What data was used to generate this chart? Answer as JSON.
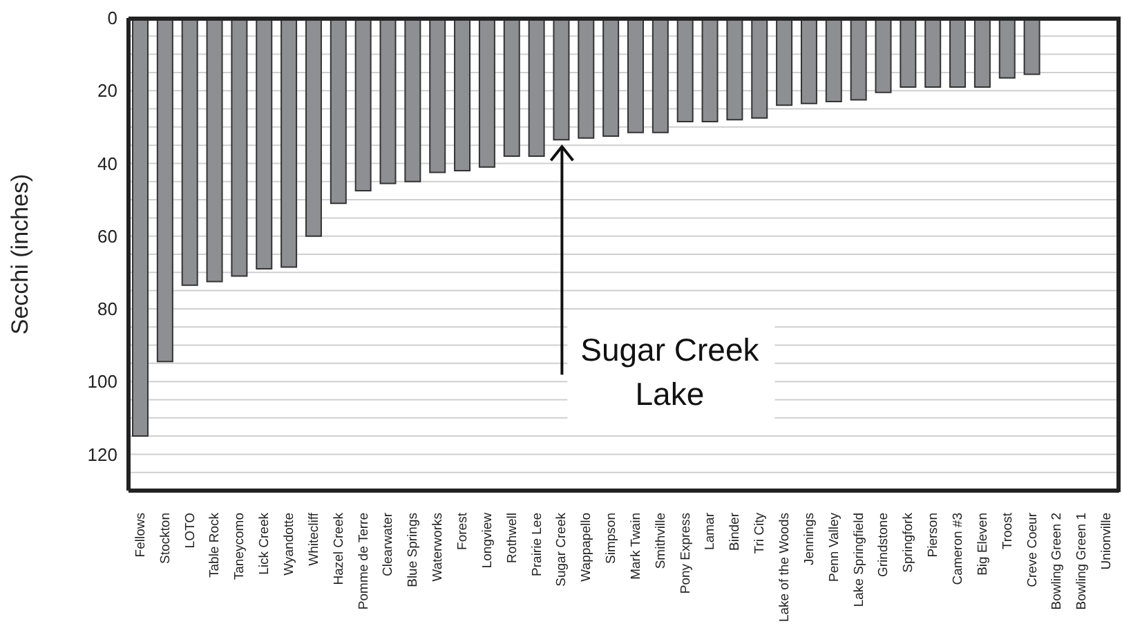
{
  "chart_data": {
    "type": "bar",
    "ylabel": "Secchi (inches)",
    "categories": [
      "Fellows",
      "Stockton",
      "LOTO",
      "Table Rock",
      "Taneycomo",
      "Lick Creek",
      "Wyandotte",
      "Whitecliff",
      "Hazel Creek",
      "Pomme de Terre",
      "Clearwater",
      "Blue Springs",
      "Waterworks",
      "Forest",
      "Longview",
      "Rothwell",
      "Prairie Lee",
      "Sugar Creek",
      "Wappapello",
      "Simpson",
      "Mark Twain",
      "Smithville",
      "Pony Express",
      "Lamar",
      "Binder",
      "Tri City",
      "Lake of the Woods",
      "Jennings",
      "Penn Valley",
      "Lake Springfield",
      "Grindstone",
      "Springfork",
      "Pierson",
      "Cameron #3",
      "Big Eleven",
      "Troost",
      "Creve Coeur",
      "Bowling Green 2",
      "Bowling Green 1",
      "Unionville"
    ],
    "values": [
      115,
      94.5,
      73.5,
      72.5,
      71,
      69,
      68.5,
      60,
      51,
      47.5,
      45.5,
      45,
      42.5,
      42,
      41,
      38,
      38,
      33.5,
      33,
      32.5,
      31.5,
      31.5,
      28.5,
      28.5,
      28,
      27.5,
      24,
      23.5,
      23,
      22.5,
      20.5,
      19,
      19,
      19,
      19,
      16.5,
      15.5,
      null,
      null,
      null
    ],
    "color": "#8e8f93",
    "ylim": [
      130,
      0
    ],
    "yticks": [
      0,
      {
        "value": 5,
        "label": null
      },
      {
        "value": 10,
        "label": null
      },
      {
        "value": 15,
        "label": null
      },
      20,
      {
        "value": 25,
        "label": null
      },
      {
        "value": 30,
        "label": null
      },
      {
        "value": 35,
        "label": null
      },
      40,
      {
        "value": 45,
        "label": null
      },
      {
        "value": 50,
        "label": null
      },
      {
        "value": 55,
        "label": null
      },
      60,
      {
        "value": 65,
        "label": null
      },
      {
        "value": 70,
        "label": null
      },
      {
        "value": 75,
        "label": null
      },
      80,
      {
        "value": 85,
        "label": null
      },
      {
        "value": 90,
        "label": null
      },
      {
        "value": 95,
        "label": null
      },
      100,
      {
        "value": 105,
        "label": null
      },
      {
        "value": 110,
        "label": null
      },
      {
        "value": 115,
        "label": null
      },
      120,
      {
        "value": 125,
        "label": null
      }
    ],
    "grid": "y",
    "annotations": [
      {
        "text": "Sugar Creek Lake",
        "x": "Sugar Creek",
        "y": 33.5
      }
    ]
  }
}
